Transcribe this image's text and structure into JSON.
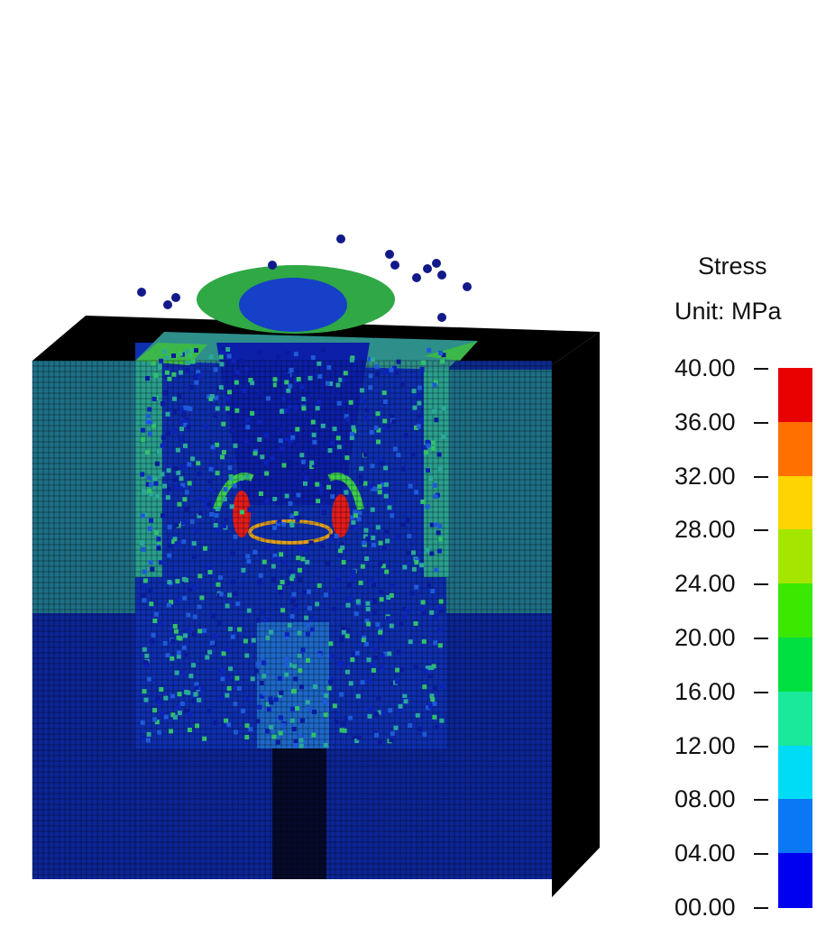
{
  "legend": {
    "title": "Stress",
    "unit": "Unit: MPa",
    "ticks": [
      "40.00",
      "36.00",
      "32.00",
      "28.00",
      "24.00",
      "20.00",
      "16.00",
      "12.00",
      "08.00",
      "04.00",
      "00.00"
    ],
    "colors": [
      "#e80000",
      "#ff7000",
      "#ffd500",
      "#a5e600",
      "#3ae800",
      "#00e040",
      "#1ae89b",
      "#00dcf5",
      "#0a78f5",
      "#0000f0"
    ]
  },
  "palette": {
    "frame": "#000000",
    "deep_blue": "#0a1f9e",
    "mid_blue": "#1446c8",
    "cyan_green": "#2aa89a",
    "teal": "#1b7a86",
    "green": "#3cb84a",
    "red": "#e41c1c"
  }
}
